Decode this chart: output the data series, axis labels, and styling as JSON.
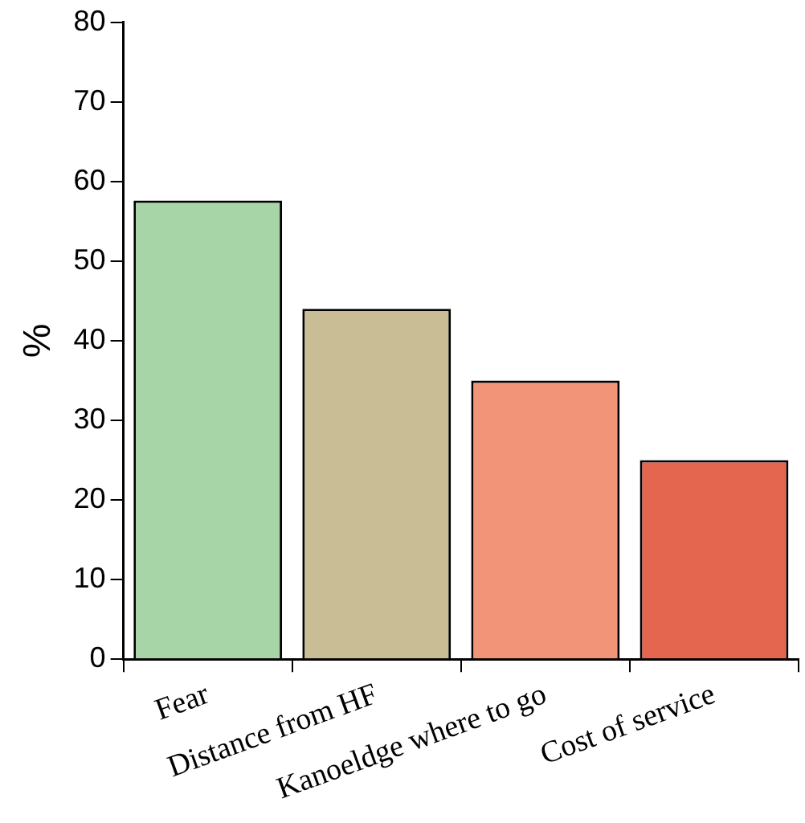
{
  "chart_data": {
    "type": "bar",
    "ylabel": "%",
    "categories": [
      "Fear",
      "Distance from HF",
      "Kanoeldge where to go",
      "Cost of service"
    ],
    "values": [
      57.6,
      44,
      35,
      25
    ],
    "colors": [
      "#a8d5a8",
      "#c8bd94",
      "#f29478",
      "#e5664f"
    ],
    "ylim": [
      0,
      80
    ],
    "yticks": [
      0,
      10,
      20,
      30,
      40,
      50,
      60,
      70,
      80
    ]
  }
}
